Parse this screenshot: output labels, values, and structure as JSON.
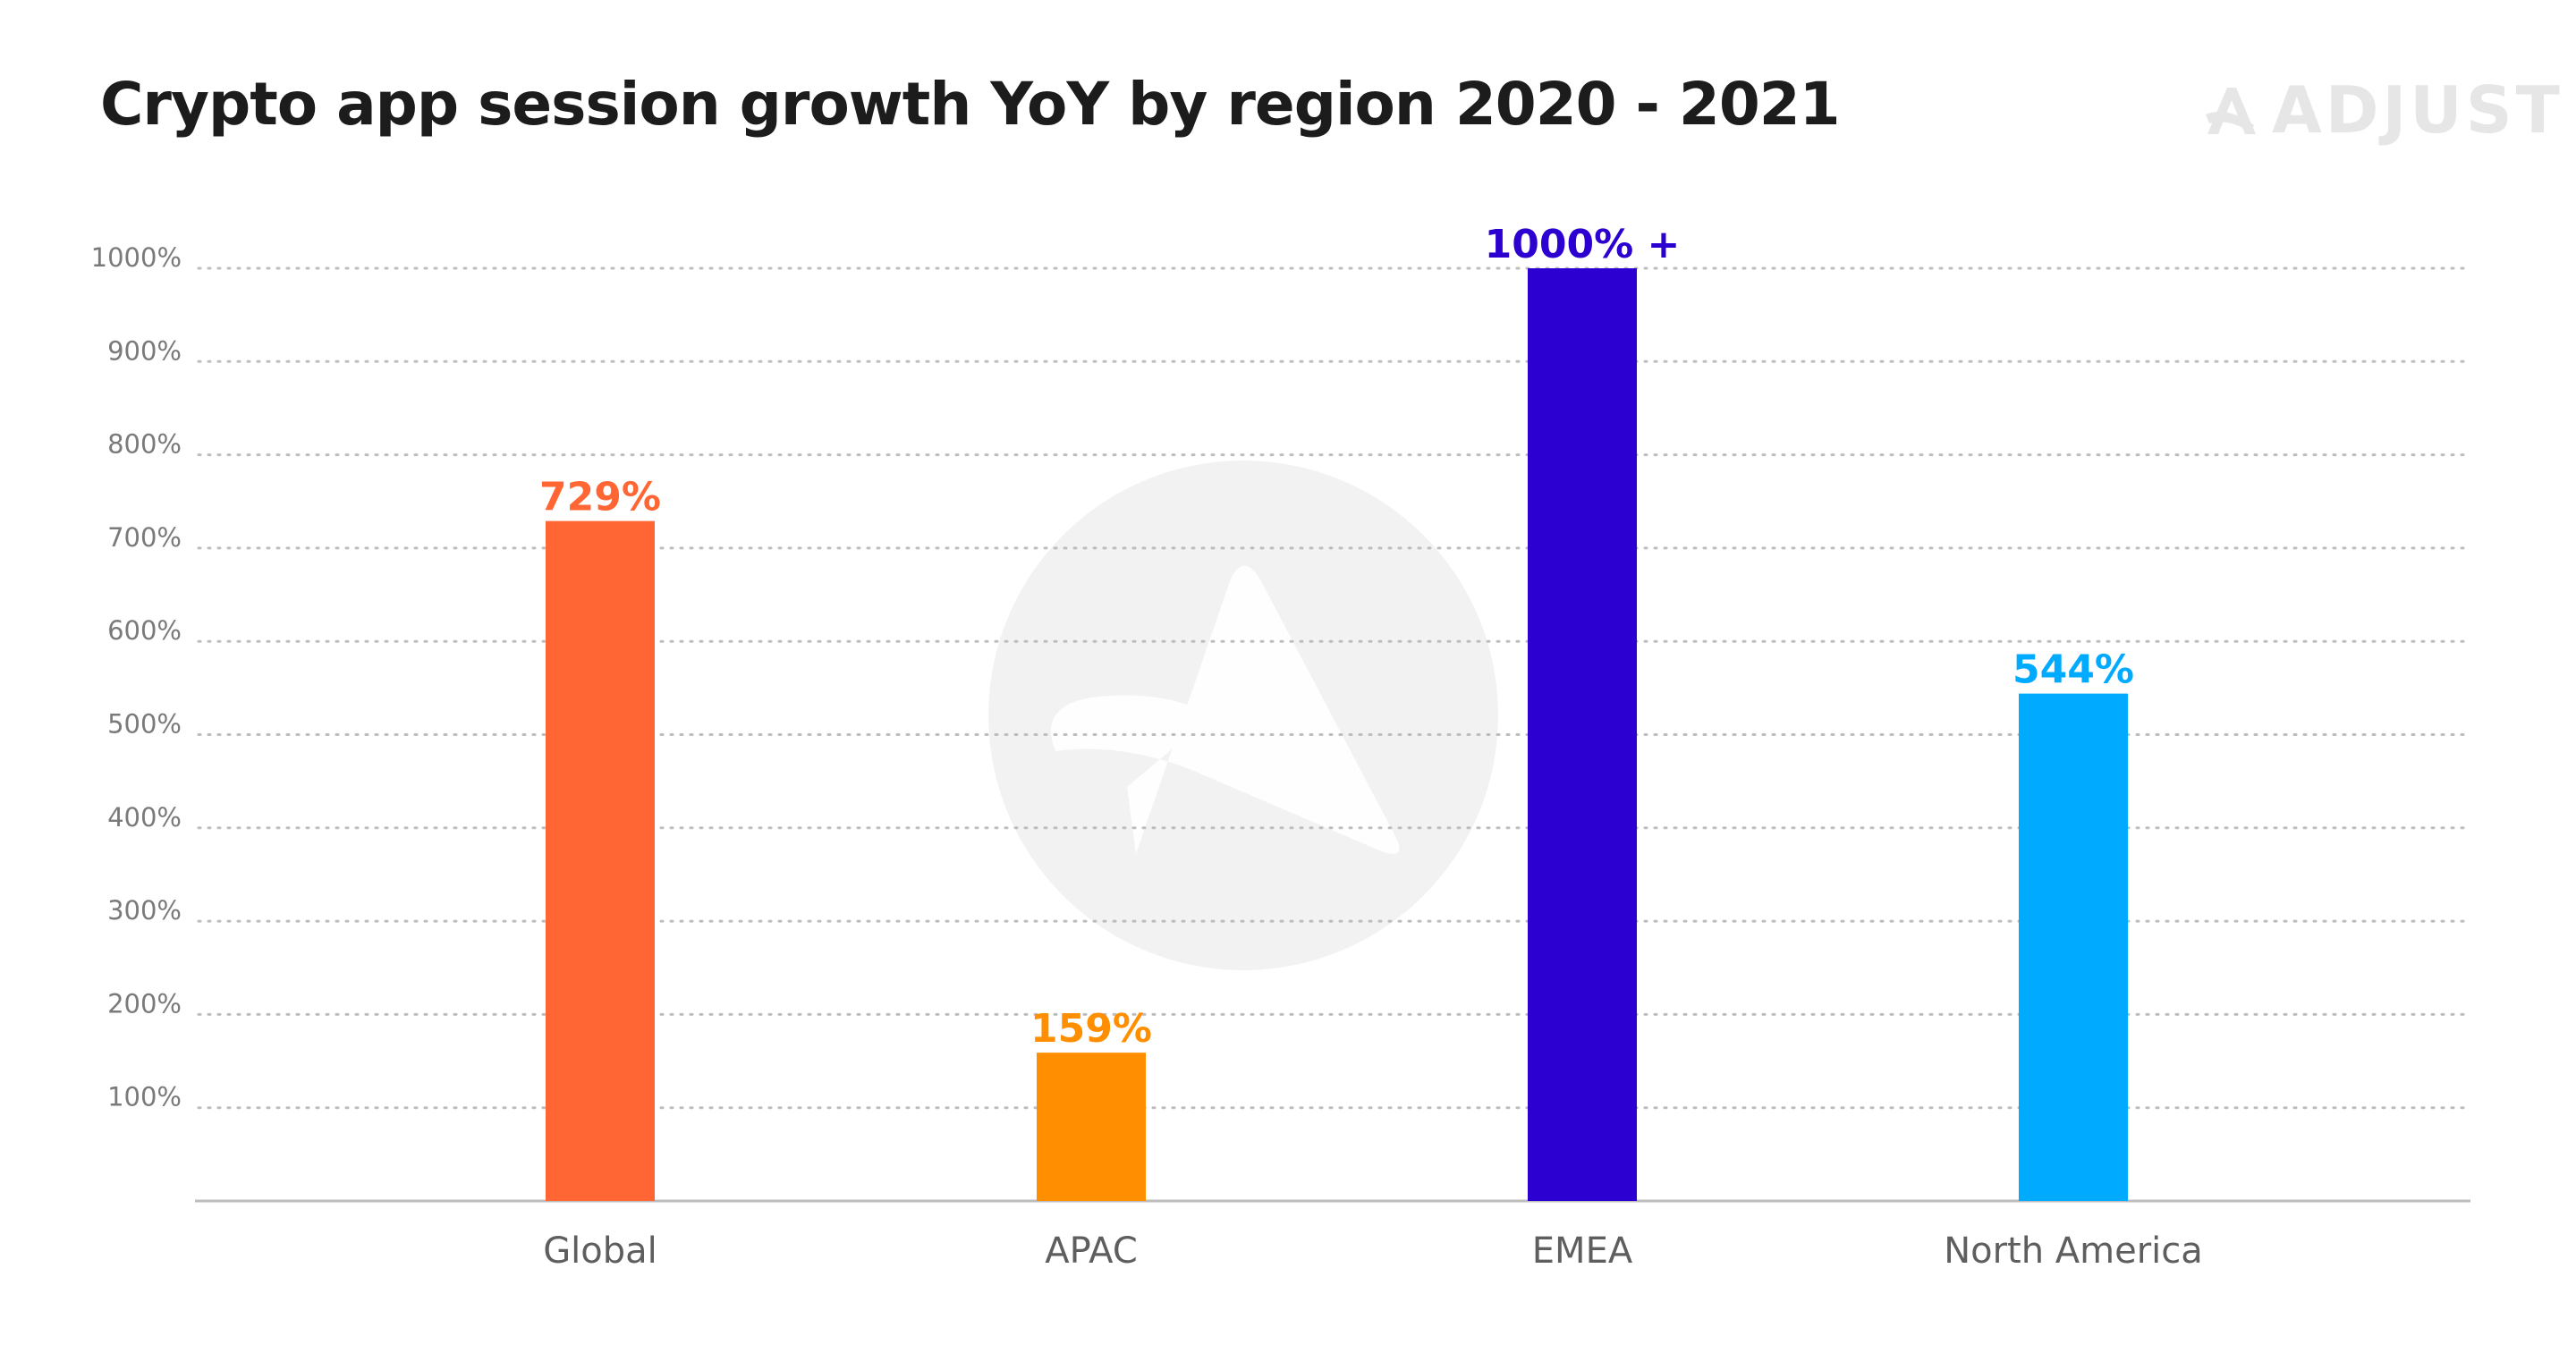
{
  "header": {
    "title": "Crypto app session growth YoY by region 2020 - 2021",
    "brand": "ADJUST"
  },
  "colors": {
    "title": "#1c1c1c",
    "axis": "#bdbdbd",
    "grid": "#bdbdbd",
    "watermark": "#f2f2f2",
    "brand": "#e6e6e6"
  },
  "chart_data": {
    "type": "bar",
    "title": "Crypto app session growth YoY by region 2020 - 2021",
    "xlabel": "",
    "ylabel": "",
    "categories": [
      "Global",
      "APAC",
      "EMEA",
      "North America"
    ],
    "values": [
      729,
      159,
      1000,
      544
    ],
    "data_labels": [
      "729%",
      "159%",
      "1000% +",
      "544%"
    ],
    "colors": [
      "#ff6633",
      "#ff8f00",
      "#2c00d0",
      "#00aaff"
    ],
    "ylim": [
      0,
      1000
    ],
    "yticks": [
      100,
      200,
      300,
      400,
      500,
      600,
      700,
      800,
      900,
      1000
    ],
    "ytick_labels": [
      "100%",
      "200%",
      "300%",
      "400%",
      "500%",
      "600%",
      "700%",
      "800%",
      "900%",
      "1000%"
    ],
    "grid": true,
    "grid_style": "dotted",
    "legend": "none"
  }
}
